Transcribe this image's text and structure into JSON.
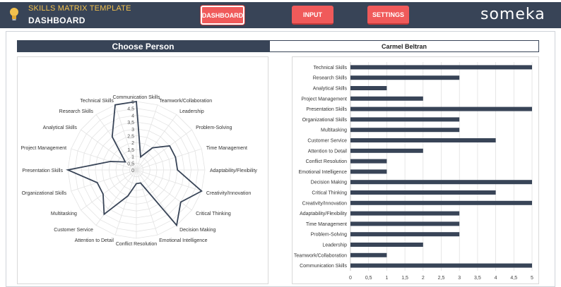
{
  "header": {
    "subtitle": "SKILLS MATRIX TEMPLATE",
    "title": "DASHBOARD",
    "brand": "someka",
    "nav": [
      {
        "label": "DASHBOARD"
      },
      {
        "label": "INPUT"
      },
      {
        "label": "SETTINGS"
      }
    ]
  },
  "selector": {
    "label": "Choose Person",
    "value": "Carmel Beltran"
  },
  "colors": {
    "dark": "#384457",
    "accent": "#f05a5a",
    "subtitle": "#f2c14e"
  },
  "chart_data": [
    {
      "type": "radar",
      "categories": [
        "Communication Skills",
        "Teamwork/Collaboration",
        "Leadership",
        "Problem-Solving",
        "Time Management",
        "Adaptability/Flexibility",
        "Creativity/Innovation",
        "Critical Thinking",
        "Decision Making",
        "Emotional Intelligence",
        "Conflict Resolution",
        "Attention to Detail",
        "Customer Service",
        "Multitasking",
        "Organizational Skills",
        "Presentation Skills",
        "Project Management",
        "Analytical Skills",
        "Research Skills",
        "Technical Skills"
      ],
      "values": [
        5,
        1,
        2,
        3,
        3,
        3,
        5,
        4,
        5,
        1,
        1,
        2,
        4,
        3,
        3,
        5,
        2,
        1,
        3,
        5
      ],
      "rmax": 5,
      "ticks": [
        "0",
        "0,5",
        "1",
        "1,5",
        "2",
        "2,5",
        "3",
        "3,5",
        "4",
        "4,5",
        "5"
      ]
    },
    {
      "type": "bar",
      "orientation": "horizontal",
      "categories": [
        "Technical Skills",
        "Research Skills",
        "Analytical Skills",
        "Project Management",
        "Presentation Skills",
        "Organizational Skills",
        "Multitasking",
        "Customer Service",
        "Attention to Detail",
        "Conflict Resolution",
        "Emotional Intelligence",
        "Decision Making",
        "Critical Thinking",
        "Creativity/Innovation",
        "Adaptability/Flexibility",
        "Time Management",
        "Problem-Solving",
        "Leadership",
        "Teamwork/Collaboration",
        "Communication Skills"
      ],
      "values": [
        5,
        3,
        1,
        2,
        5,
        3,
        3,
        4,
        2,
        1,
        1,
        5,
        4,
        5,
        3,
        3,
        3,
        2,
        1,
        5
      ],
      "xlim": [
        0,
        5
      ],
      "ticks": [
        "0",
        "0,5",
        "1",
        "1,5",
        "2",
        "2,5",
        "3",
        "3,5",
        "4",
        "4,5",
        "5"
      ]
    }
  ]
}
